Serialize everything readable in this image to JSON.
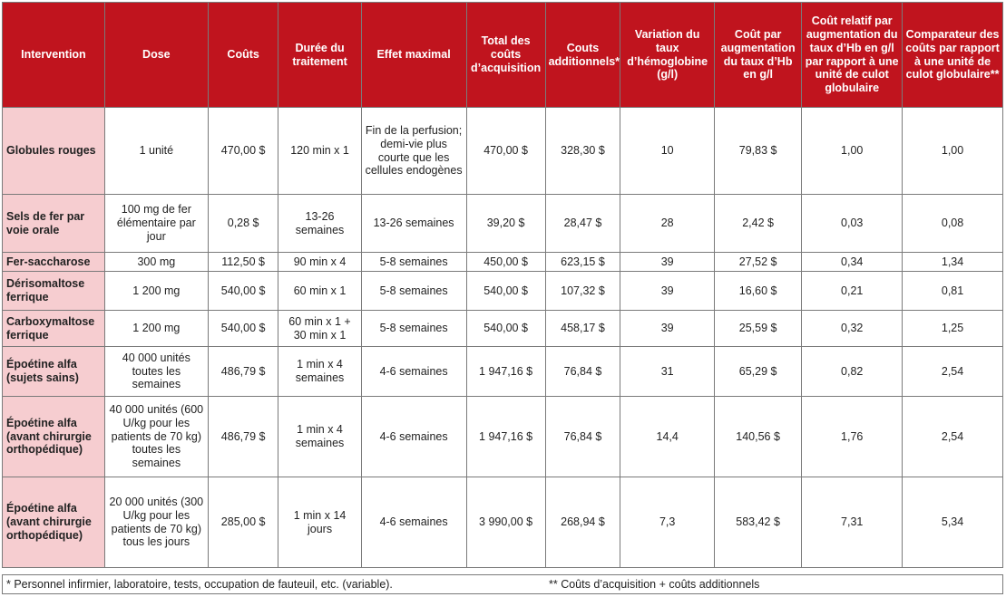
{
  "columns": [
    "Intervention",
    "Dose",
    "Coûts",
    "Durée du traitement",
    "Effet maximal",
    "Total des coûts d’acquisition",
    "Couts additionnels*",
    "Variation du taux d’hémoglobine (g/l)",
    "Coût par augmentation du taux d’Hb en g/l",
    "Coût relatif par augmentation du taux d’Hb en g/l par rapport à une unité de culot globulaire",
    "Comparateur des coûts par rapport à une unité de culot globulaire**"
  ],
  "rows": [
    [
      "Globules rouges",
      "1 unité",
      "470,00 $",
      "120 min x 1",
      "Fin de la perfusion; demi-vie plus courte que les cellules endogènes",
      "470,00 $",
      "328,30 $",
      "10",
      "79,83 $",
      "1,00",
      "1,00"
    ],
    [
      "Sels de fer par voie orale",
      "100 mg de fer élémentaire par jour",
      "0,28 $",
      "13-26 semaines",
      "13-26 semaines",
      "39,20 $",
      "28,47 $",
      "28",
      "2,42 $",
      "0,03",
      "0,08"
    ],
    [
      "Fer-saccharose",
      "300 mg",
      "112,50 $",
      "90 min x 4",
      "5-8 semaines",
      "450,00 $",
      "623,15 $",
      "39",
      "27,52 $",
      "0,34",
      "1,34"
    ],
    [
      "Dérisomaltose ferrique",
      "1 200 mg",
      "540,00 $",
      "60 min x 1",
      "5-8 semaines",
      "540,00 $",
      "107,32 $",
      "39",
      "16,60 $",
      "0,21",
      "0,81"
    ],
    [
      "Carboxymaltose ferrique",
      "1 200 mg",
      "540,00 $",
      "60 min x 1 + 30 min x 1",
      "5-8 semaines",
      "540,00 $",
      "458,17 $",
      "39",
      "25,59 $",
      "0,32",
      "1,25"
    ],
    [
      "Époétine alfa (sujets sains)",
      "40 000 unités toutes les semaines",
      "486,79 $",
      "1 min x 4 semaines",
      "4-6 semaines",
      "1 947,16 $",
      "76,84 $",
      "31",
      "65,29 $",
      "0,82",
      "2,54"
    ],
    [
      "Époétine alfa (avant chirurgie orthopédique)",
      "40 000 unités (600 U/kg pour les patients de 70 kg) toutes les semaines",
      "486,79 $",
      "1 min x 4 semaines",
      "4-6 semaines",
      "1 947,16 $",
      "76,84 $",
      "14,4",
      "140,56 $",
      "1,76",
      "2,54"
    ],
    [
      "Époétine alfa (avant chirurgie orthopédique)",
      "20 000 unités (300 U/kg pour les patients de 70 kg) tous les jours",
      "285,00 $",
      "1 min x 14 jours",
      "4-6 semaines",
      "3 990,00 $",
      "268,94 $",
      "7,3",
      "583,42 $",
      "7,31",
      "5,34"
    ]
  ],
  "footnotes": {
    "staff": "* Personnel infirmier, laboratoire, tests, occupation de fauteuil, etc. (variable).",
    "acquisition": "** Coûts d’acquisition + coûts additionnels"
  },
  "colors": {
    "header_bg": "#c0141e",
    "row_label_bg": "#f6cdd0",
    "border": "#7a7a7a"
  }
}
